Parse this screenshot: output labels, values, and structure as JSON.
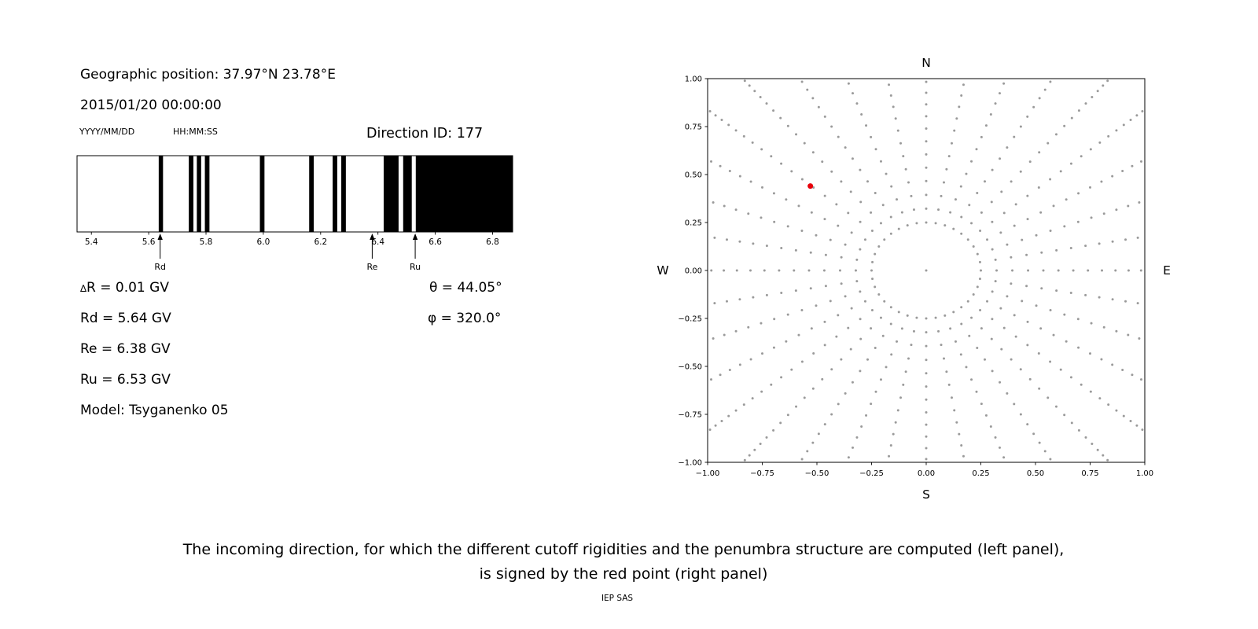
{
  "info": {
    "geo_position": "Geographic position: 37.97°N 23.78°E",
    "datetime": "2015/01/20 00:00:00",
    "date_format": "YYYY/MM/DD",
    "time_format": "HH:MM:SS",
    "direction_id": "Direction ID: 177",
    "delta_symbol": "∆",
    "delta_rest": "R = 0.01 GV",
    "rd": "Rd = 5.64 GV",
    "re": "Re = 6.38 GV",
    "ru": "Ru = 6.53 GV",
    "model": "Model: Tsyganenko 05",
    "theta": "θ = 44.05°",
    "phi": "φ = 320.0°"
  },
  "caption": {
    "line1": "The incoming direction, for which the different cutoff rigidities and the penumbra structure are computed (left panel),",
    "line2": "is signed by the red point (right panel)",
    "credit": "IEP SAS"
  },
  "chart_data": [
    {
      "type": "bar",
      "subtype": "penumbra-barcode",
      "description": "Penumbra structure: black bands are forbidden rigidity intervals (GV)",
      "xlim": [
        5.35,
        6.87
      ],
      "xticks": [
        5.4,
        5.6,
        5.8,
        6.0,
        6.2,
        6.4,
        6.6,
        6.8
      ],
      "bands_gv": [
        [
          5.635,
          5.65
        ],
        [
          5.74,
          5.756
        ],
        [
          5.768,
          5.783
        ],
        [
          5.796,
          5.812
        ],
        [
          5.988,
          6.004
        ],
        [
          6.16,
          6.176
        ],
        [
          6.242,
          6.258
        ],
        [
          6.272,
          6.288
        ],
        [
          6.42,
          6.472
        ],
        [
          6.488,
          6.518
        ],
        [
          6.532,
          6.87
        ]
      ],
      "markers": [
        {
          "label": "Rd",
          "value": 5.64
        },
        {
          "label": "Re",
          "value": 6.38
        },
        {
          "label": "Ru",
          "value": 6.53
        }
      ],
      "band_color": "#000000",
      "background": "#ffffff"
    },
    {
      "type": "scatter",
      "subtype": "direction-sky-map",
      "description": "Grid of incoming directions (grey dots, radial spokes); red point marks Direction ID 177",
      "xlim": [
        -1,
        1
      ],
      "ylim": [
        -1,
        1
      ],
      "xticks": [
        -1.0,
        -0.75,
        -0.5,
        -0.25,
        0.0,
        0.25,
        0.5,
        0.75,
        1.0
      ],
      "yticks": [
        -1.0,
        -0.75,
        -0.5,
        -0.25,
        0.0,
        0.25,
        0.5,
        0.75,
        1.0
      ],
      "compass": {
        "top": "N",
        "bottom": "S",
        "left": "W",
        "right": "E"
      },
      "spokes": {
        "azimuth_count": 36,
        "azimuth_step_deg": 10,
        "radii": [
          0.25,
          0.322,
          0.394,
          0.466,
          0.536,
          0.605,
          0.673,
          0.74,
          0.804,
          0.866,
          0.926,
          0.983,
          1.037,
          1.088,
          1.136,
          1.18,
          1.221,
          1.258,
          1.291,
          1.319,
          1.344,
          1.364,
          1.38,
          1.391,
          1.398,
          1.4
        ]
      },
      "center_point": [
        0,
        0
      ],
      "red_point": [
        -0.53,
        0.44
      ],
      "dot_color": "#9a9a9a",
      "red_color": "#e8000b"
    }
  ]
}
